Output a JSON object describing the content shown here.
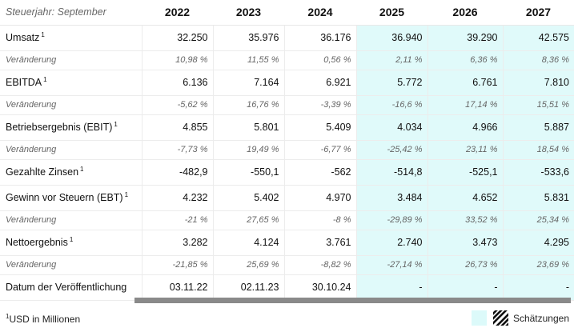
{
  "header": {
    "label": "Steuerjahr: September",
    "years": [
      "2022",
      "2023",
      "2024",
      "2025",
      "2026",
      "2027"
    ]
  },
  "estimate_start_index": 3,
  "rows": [
    {
      "type": "main",
      "label": "Umsatz",
      "sup": "1",
      "values": [
        "32.250",
        "35.976",
        "36.176",
        "36.940",
        "39.290",
        "42.575"
      ]
    },
    {
      "type": "chg",
      "label": "Veränderung",
      "sup": "",
      "values": [
        "10,98 %",
        "11,55 %",
        "0,56 %",
        "2,11 %",
        "6,36 %",
        "8,36 %"
      ]
    },
    {
      "type": "main",
      "label": "EBITDA",
      "sup": "1",
      "values": [
        "6.136",
        "7.164",
        "6.921",
        "5.772",
        "6.761",
        "7.810"
      ]
    },
    {
      "type": "chg",
      "label": "Veränderung",
      "sup": "",
      "values": [
        "-5,62 %",
        "16,76 %",
        "-3,39 %",
        "-16,6 %",
        "17,14 %",
        "15,51 %"
      ]
    },
    {
      "type": "main",
      "label": "Betriebsergebnis (EBIT)",
      "sup": "1",
      "values": [
        "4.855",
        "5.801",
        "5.409",
        "4.034",
        "4.966",
        "5.887"
      ]
    },
    {
      "type": "chg",
      "label": "Veränderung",
      "sup": "",
      "values": [
        "-7,73 %",
        "19,49 %",
        "-6,77 %",
        "-25,42 %",
        "23,11 %",
        "18,54 %"
      ]
    },
    {
      "type": "main",
      "label": "Gezahlte Zinsen",
      "sup": "1",
      "values": [
        "-482,9",
        "-550,1",
        "-562",
        "-514,8",
        "-525,1",
        "-533,6"
      ]
    },
    {
      "type": "main",
      "label": "Gewinn vor Steuern (EBT)",
      "sup": "1",
      "values": [
        "4.232",
        "5.402",
        "4.970",
        "3.484",
        "4.652",
        "5.831"
      ]
    },
    {
      "type": "chg",
      "label": "Veränderung",
      "sup": "",
      "values": [
        "-21 %",
        "27,65 %",
        "-8 %",
        "-29,89 %",
        "33,52 %",
        "25,34 %"
      ]
    },
    {
      "type": "main",
      "label": "Nettoergebnis",
      "sup": "1",
      "values": [
        "3.282",
        "4.124",
        "3.761",
        "2.740",
        "3.473",
        "4.295"
      ]
    },
    {
      "type": "chg",
      "label": "Veränderung",
      "sup": "",
      "values": [
        "-21,85 %",
        "25,69 %",
        "-8,82 %",
        "-27,14 %",
        "26,73 %",
        "23,69 %"
      ]
    },
    {
      "type": "main",
      "label": "Datum der Veröffentlichung",
      "sup": "",
      "values": [
        "03.11.22",
        "02.11.23",
        "30.10.24",
        "-",
        "-",
        "-"
      ]
    }
  ],
  "footnote": {
    "sup": "1",
    "text": "USD in Millionen"
  },
  "legend": {
    "label": "Schätzungen",
    "estimate_color": "#dcfafa"
  }
}
